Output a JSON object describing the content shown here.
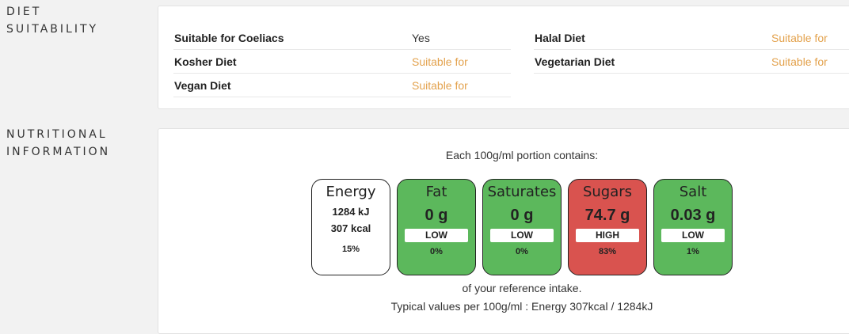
{
  "diet": {
    "label_line1": "DIET",
    "label_line2": "SUITABILITY",
    "left": [
      {
        "name": "Suitable for Coeliacs",
        "value": "Yes"
      },
      {
        "name": "Kosher Diet",
        "value": "Suitable for"
      },
      {
        "name": "Vegan Diet",
        "value": "Suitable for"
      }
    ],
    "right": [
      {
        "name": "Halal Diet",
        "value": "Suitable for"
      },
      {
        "name": "Vegetarian Diet",
        "value": "Suitable for"
      }
    ]
  },
  "nutrition": {
    "label_line1": "NUTRITIONAL",
    "label_line2": "INFORMATION",
    "intro": "Each 100g/ml portion contains:",
    "energy": {
      "name": "Energy",
      "kj": "1284 kJ",
      "kcal": "307 kcal",
      "pct": "15%"
    },
    "tiles": [
      {
        "name": "Fat",
        "amount": "0 g",
        "level": "LOW",
        "pct": "0%",
        "color": "#5cb85c"
      },
      {
        "name": "Saturates",
        "amount": "0 g",
        "level": "LOW",
        "pct": "0%",
        "color": "#5cb85c"
      },
      {
        "name": "Sugars",
        "amount": "74.7 g",
        "level": "HIGH",
        "pct": "83%",
        "color": "#d9534f"
      },
      {
        "name": "Salt",
        "amount": "0.03 g",
        "level": "LOW",
        "pct": "1%",
        "color": "#5cb85c"
      }
    ],
    "reference": "of your reference intake.",
    "typical": "Typical values per 100g/ml : Energy 307kcal / 1284kJ"
  },
  "colors": {
    "suitable_text": "#e3a24d",
    "low": "#5cb85c",
    "high": "#d9534f"
  }
}
